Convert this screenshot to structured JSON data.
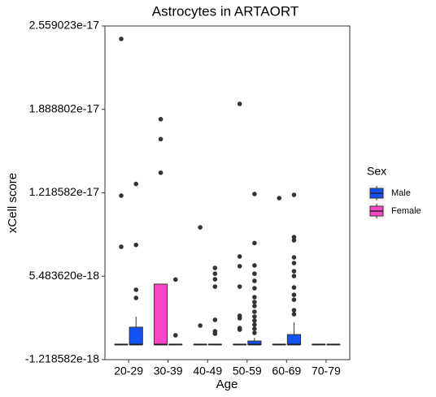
{
  "chart_data": {
    "type": "box",
    "title": "Astrocytes in ARTAORT",
    "x_label": "Age",
    "y_label": "xCell score",
    "legend_title": "Sex",
    "legend_position": "right",
    "categories": [
      "20-29",
      "30-39",
      "40-49",
      "50-59",
      "60-69",
      "70-79"
    ],
    "ylim": [
      -1.218582e-18,
      2.559023e-17
    ],
    "yticks": [
      {
        "value": -1.218582e-18,
        "label": "-1.218582e-18"
      },
      {
        "value": 5.48362e-18,
        "label": "5.483620e-18"
      },
      {
        "value": 1.218582e-17,
        "label": "1.218582e-17"
      },
      {
        "value": 1.888802e-17,
        "label": "1.888802e-17"
      },
      {
        "value": 2.559023e-17,
        "label": "2.559023e-17"
      }
    ],
    "series": [
      {
        "name": "Male",
        "color": "#1352f2",
        "boxes": [
          {
            "min": 0,
            "q1": 0,
            "median": 0,
            "q3": 1.39e-18,
            "max": 2.24e-18,
            "outliers": [
              1.29e-17,
              8e-18,
              4.4e-18,
              3.74e-18
            ]
          },
          {
            "min": 0,
            "q1": 0,
            "median": 0,
            "q3": 0,
            "max": 0,
            "outliers": [
              5.22e-18,
              7.4e-19
            ]
          },
          {
            "min": 0,
            "q1": 0,
            "median": 0,
            "q3": 0,
            "max": 0,
            "outliers": [
              6.15e-18,
              5.69e-18,
              5.24e-18,
              4.65e-18,
              1.98e-18,
              1.06e-18,
              8.7e-19
            ]
          },
          {
            "min": 0,
            "q1": 0,
            "median": 0,
            "q3": 2.8e-19,
            "max": 5.4e-19,
            "outliers": [
              1.209e-17,
              8.15e-18,
              6.35e-18,
              5.69e-18,
              5.11e-18,
              4.52e-18,
              3.8e-18,
              3.41e-18,
              3.09e-18,
              2.63e-18,
              2.24e-18,
              1.91e-18,
              1.59e-18,
              1.26e-18,
              9.3e-19
            ]
          },
          {
            "min": 0,
            "q1": 0,
            "median": 0,
            "q3": 8e-19,
            "max": 1.78e-18,
            "outliers": [
              1.202e-17,
              8.63e-18,
              8.37e-18,
              7e-18,
              6.54e-18,
              5.89e-18,
              5.5e-18,
              4.58e-18,
              3.99e-18,
              3.6e-18,
              2.76e-18,
              2.43e-18
            ]
          },
          {
            "min": 0,
            "q1": 0,
            "median": 0,
            "q3": 0,
            "max": 0,
            "outliers": []
          }
        ]
      },
      {
        "name": "Female",
        "color": "#fd45c9",
        "boxes": [
          {
            "min": 0,
            "q1": 0,
            "median": 0,
            "q3": 0,
            "max": 0,
            "outliers": [
              2.455e-17,
              1.196e-17,
              7.85e-18
            ]
          },
          {
            "min": 0,
            "q1": 0,
            "median": 0,
            "q3": 4.85e-18,
            "max": 4.85e-18,
            "outliers": [
              1.81e-17,
              1.65e-17,
              1.38e-17
            ]
          },
          {
            "min": 0,
            "q1": 0,
            "median": 0,
            "q3": 0,
            "max": 0,
            "outliers": [
              9.41e-18,
              1.52e-18
            ]
          },
          {
            "min": 0,
            "q1": 0,
            "median": 0,
            "q3": 0,
            "max": 0,
            "outliers": [
              1.933e-17,
              7.07e-18,
              6.29e-18,
              4.65e-18,
              2.31e-18,
              2.11e-18,
              1.32e-18,
              1.19e-18
            ]
          },
          {
            "min": 0,
            "q1": 0,
            "median": 0,
            "q3": 0,
            "max": 0,
            "outliers": [
              1.176e-17
            ]
          },
          {
            "min": 0,
            "q1": 0,
            "median": 0,
            "q3": 0,
            "max": 0,
            "outliers": []
          }
        ]
      }
    ]
  }
}
